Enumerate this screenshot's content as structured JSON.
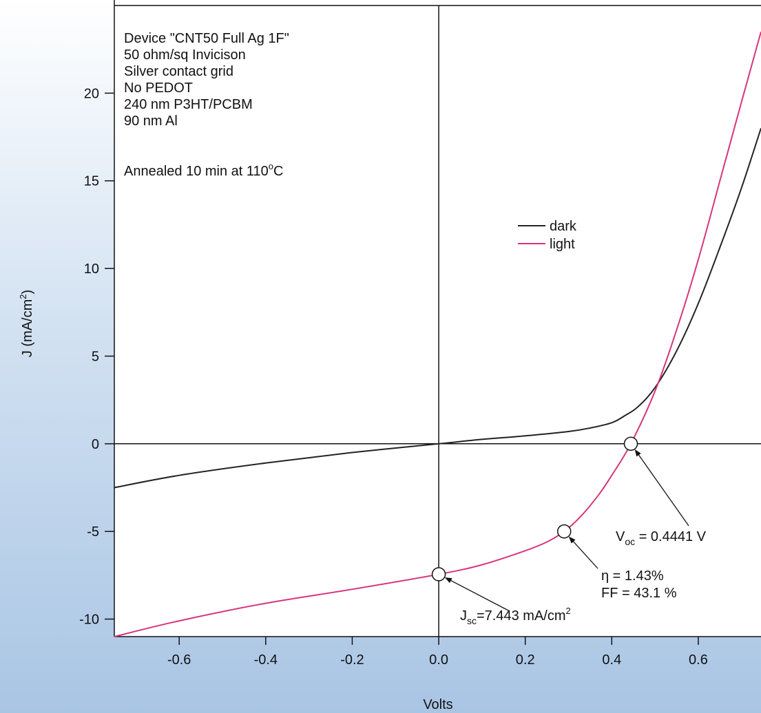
{
  "chart_data": {
    "type": "line",
    "xlabel": "Volts",
    "ylabel": "J (mA/cm",
    "ylabel_sup": "2",
    "ylabel_close": ")",
    "xlim": [
      -0.75,
      0.745
    ],
    "ylim": [
      -11,
      25
    ],
    "x_ticks": [
      -0.6,
      -0.4,
      -0.2,
      0.0,
      0.2,
      0.4,
      0.6
    ],
    "x_tick_labels": [
      "-0.6",
      "-0.4",
      "-0.2",
      "0.0",
      "0.2",
      "0.4",
      "0.6"
    ],
    "y_ticks": [
      -10,
      -5,
      0,
      5,
      10,
      15,
      20
    ],
    "y_tick_labels": [
      "-10",
      "-5",
      "0",
      "5",
      "10",
      "15",
      "20"
    ],
    "legend_position": "center-right",
    "grid": false,
    "series": [
      {
        "name": "dark",
        "color": "#222222",
        "x": [
          -0.75,
          -0.6,
          -0.4,
          -0.2,
          0.0,
          0.1,
          0.2,
          0.3,
          0.35,
          0.4,
          0.43,
          0.46,
          0.5,
          0.55,
          0.6,
          0.65,
          0.7,
          0.745
        ],
        "y": [
          -2.5,
          -1.8,
          -1.1,
          -0.5,
          0.0,
          0.25,
          0.45,
          0.7,
          0.9,
          1.2,
          1.6,
          2.1,
          3.2,
          5.3,
          8.0,
          11.2,
          14.6,
          18.0
        ]
      },
      {
        "name": "light",
        "color": "#d6357a",
        "x": [
          -0.75,
          -0.6,
          -0.4,
          -0.2,
          0.0,
          0.1,
          0.2,
          0.25,
          0.29,
          0.33,
          0.37,
          0.4,
          0.4441,
          0.5,
          0.55,
          0.6,
          0.65,
          0.7,
          0.745
        ],
        "y": [
          -11.0,
          -10.1,
          -9.1,
          -8.3,
          -7.443,
          -6.9,
          -6.1,
          -5.6,
          -5.0,
          -4.1,
          -2.9,
          -1.8,
          0.0,
          3.0,
          6.5,
          10.5,
          15.0,
          19.5,
          23.5
        ]
      }
    ],
    "markers": [
      {
        "x": 0.4441,
        "y": 0.0
      },
      {
        "x": 0.29,
        "y": -5.0
      },
      {
        "x": 0.0,
        "y": -7.443
      }
    ],
    "annotations": {
      "voc": {
        "prefix": "V",
        "sub": "oc",
        "text": " = 0.4441 V"
      },
      "eta": {
        "line1": "η = 1.43%",
        "line2": "FF = 43.1 %"
      },
      "jsc": {
        "prefix": "J",
        "sub": "sc",
        "text": "=7.443 mA/cm",
        "sup": "2"
      }
    }
  },
  "info_box": {
    "lines": [
      "Device \"CNT50 Full Ag 1F\"",
      "50 ohm/sq Invicison",
      "Silver contact grid",
      "No PEDOT",
      "240 nm P3HT/PCBM",
      "90 nm Al"
    ],
    "annealed_prefix": "Annealed 10 min at 110",
    "annealed_sup": "o",
    "annealed_suffix": "C"
  },
  "legend": {
    "dark": "dark",
    "light": "light"
  }
}
